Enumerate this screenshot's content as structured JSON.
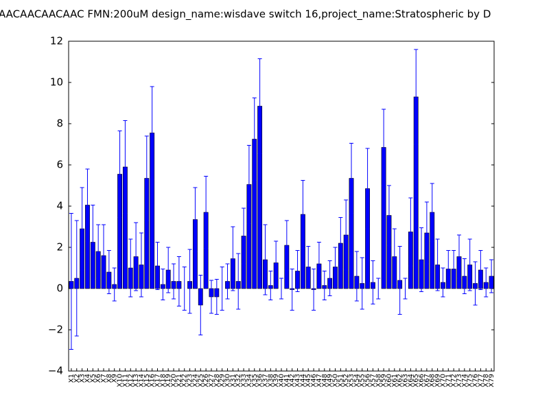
{
  "chart_data": {
    "type": "bar",
    "title": "AACAACAACAAC  FMN:200uM  design_name:wisdave switch 16,project_name:Stratospheric by D",
    "categories": [
      "X1",
      "X2",
      "X3",
      "X4",
      "X5",
      "X6",
      "X7",
      "X8",
      "X9",
      "X10",
      "X11",
      "X12",
      "X13",
      "X14",
      "X15",
      "X16",
      "X17",
      "X18",
      "X19",
      "X20",
      "X21",
      "X22",
      "X23",
      "X24",
      "X25",
      "X26",
      "X27",
      "X28",
      "X29",
      "X30",
      "X31",
      "X32",
      "X33",
      "X34",
      "X35",
      "X36",
      "X37",
      "X38",
      "X39",
      "X40",
      "X41",
      "X42",
      "X43",
      "X44",
      "X45",
      "X46",
      "X47",
      "X48",
      "X49",
      "X50",
      "X51",
      "X52",
      "X53",
      "X54",
      "X55",
      "X56",
      "X57",
      "X58",
      "X59",
      "X60",
      "X61",
      "X62",
      "X63",
      "X64",
      "X65",
      "X66",
      "X67",
      "X68",
      "X69",
      "X70",
      "X71",
      "X72",
      "X73",
      "X74",
      "X75",
      "X76",
      "X77",
      "X78",
      "X79"
    ],
    "values": [
      0.35,
      0.5,
      2.9,
      4.05,
      2.25,
      1.8,
      1.6,
      0.8,
      0.2,
      5.55,
      5.9,
      1.0,
      1.55,
      1.15,
      5.35,
      7.55,
      1.1,
      0.2,
      0.9,
      0.35,
      0.35,
      0.0,
      0.35,
      3.35,
      -0.8,
      3.7,
      -0.4,
      -0.4,
      0.0,
      0.35,
      1.45,
      0.35,
      2.55,
      5.05,
      7.25,
      8.85,
      1.4,
      0.15,
      1.25,
      0.0,
      2.1,
      -0.05,
      0.85,
      3.6,
      1.05,
      -0.05,
      1.2,
      0.15,
      0.5,
      1.05,
      2.2,
      2.6,
      5.35,
      0.6,
      0.25,
      4.85,
      0.3,
      0.0,
      6.85,
      3.55,
      1.55,
      0.4,
      0.0,
      2.75,
      9.3,
      1.4,
      2.7,
      3.7,
      1.15,
      0.3,
      0.95,
      0.95,
      1.55,
      0.6,
      1.15,
      0.25,
      0.9,
      0.3,
      0.6
    ],
    "errors": [
      3.3,
      2.8,
      2.0,
      1.75,
      1.8,
      1.3,
      1.5,
      1.05,
      0.8,
      2.1,
      2.25,
      1.4,
      1.65,
      1.55,
      2.05,
      2.25,
      1.15,
      0.75,
      1.1,
      0.85,
      1.2,
      1.05,
      1.55,
      1.55,
      1.45,
      1.75,
      0.8,
      0.85,
      1.05,
      0.85,
      1.55,
      1.35,
      1.35,
      1.9,
      2.0,
      2.3,
      1.7,
      0.7,
      1.05,
      0.5,
      1.2,
      1.0,
      1.0,
      1.65,
      1.0,
      1.0,
      1.05,
      0.7,
      0.85,
      0.95,
      1.25,
      1.7,
      1.7,
      1.2,
      1.25,
      1.95,
      1.05,
      0.5,
      1.85,
      1.45,
      1.35,
      1.65,
      0.5,
      1.65,
      2.3,
      1.55,
      1.5,
      1.4,
      1.25,
      0.7,
      0.9,
      0.9,
      1.05,
      0.85,
      1.25,
      1.05,
      0.95,
      0.7,
      0.8
    ],
    "color": "#0000ff",
    "error_color": "#0000ff",
    "ylim": [
      -4,
      12
    ],
    "yticks": [
      {
        "value": -4,
        "label": "−4"
      },
      {
        "value": -2,
        "label": "−2"
      },
      0,
      2,
      4,
      6,
      8,
      10,
      12
    ],
    "grid": false
  }
}
